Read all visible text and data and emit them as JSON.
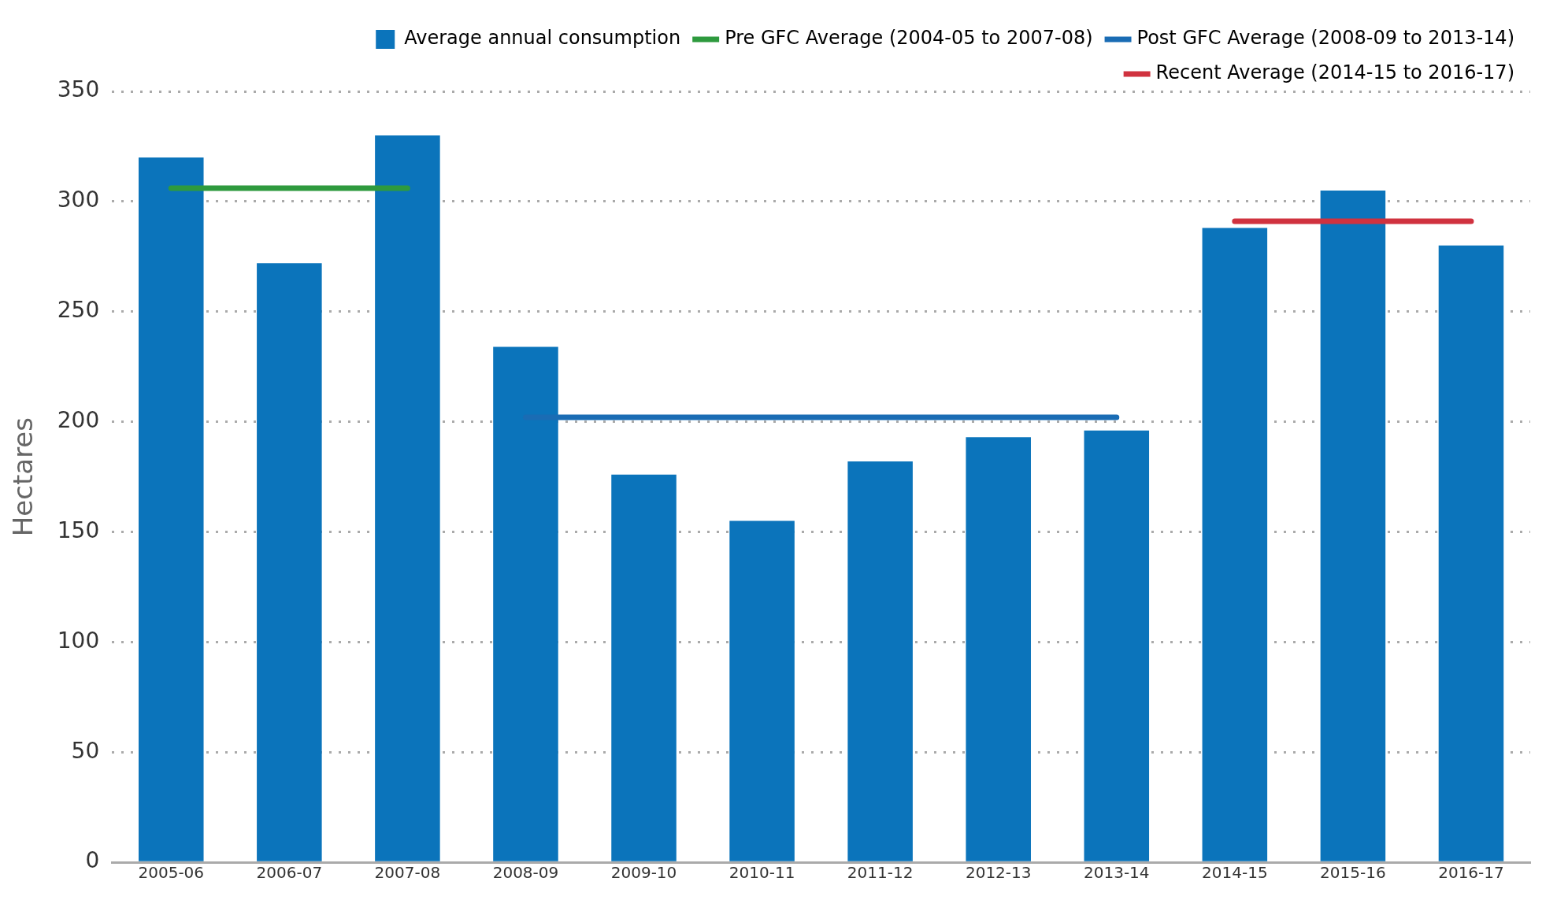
{
  "chart_data": {
    "type": "bar",
    "ylabel": "Hectares",
    "categories": [
      "2005-06",
      "2006-07",
      "2007-08",
      "2008-09",
      "2009-10",
      "2010-11",
      "2011-12",
      "2012-13",
      "2013-14",
      "2014-15",
      "2015-16",
      "2016-17"
    ],
    "series": [
      {
        "name": "Average annual consumption",
        "color": "#0b74bb",
        "values": [
          320,
          272,
          330,
          234,
          176,
          155,
          182,
          193,
          196,
          288,
          305,
          280
        ]
      },
      {
        "name": "Pre GFC Average (2004-05 to 2007-08)",
        "type": "line",
        "color": "#2e9a3e",
        "values": [
          306,
          306,
          306,
          null,
          null,
          null,
          null,
          null,
          null,
          null,
          null,
          null
        ]
      },
      {
        "name": "Post GFC Average (2008-09 to 2013-14)",
        "type": "line",
        "color": "#1a6cb4",
        "values": [
          null,
          null,
          null,
          202,
          202,
          202,
          202,
          202,
          202,
          null,
          null,
          null
        ]
      },
      {
        "name": "Recent Average (2014-15 to 2016-17)",
        "type": "line",
        "color": "#d0323f",
        "values": [
          null,
          null,
          null,
          null,
          null,
          null,
          null,
          null,
          null,
          291,
          291,
          291
        ]
      }
    ],
    "ylim": [
      0,
      350
    ],
    "yticks": [
      0,
      50,
      100,
      150,
      200,
      250,
      300,
      350
    ],
    "grid": "y",
    "legend": "top",
    "marker": "none"
  }
}
